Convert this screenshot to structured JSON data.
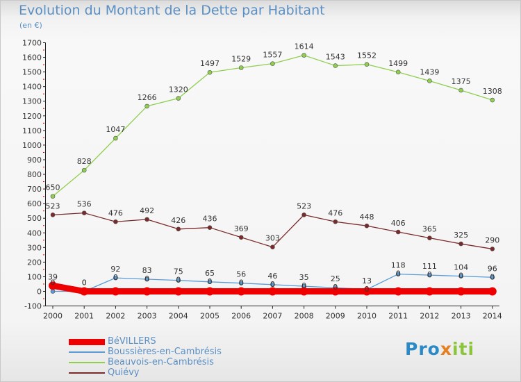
{
  "header": {
    "title": "Evolution du Montant de la Dette par Habitant",
    "subtitle": "(en €)"
  },
  "chart_data": {
    "type": "line",
    "title": "Evolution du Montant de la Dette par Habitant",
    "subtitle": "(en €)",
    "xlabel": "",
    "ylabel": "",
    "categories": [
      "2000",
      "2001",
      "2002",
      "2003",
      "2004",
      "2005",
      "2006",
      "2007",
      "2008",
      "2009",
      "2010",
      "2011",
      "2012",
      "2013",
      "2014"
    ],
    "ylim": [
      -100,
      1700
    ],
    "yticks": [
      -100,
      0,
      100,
      200,
      300,
      400,
      500,
      600,
      700,
      800,
      900,
      1000,
      1100,
      1200,
      1300,
      1400,
      1500,
      1600,
      1700
    ],
    "grid": false,
    "legend_position": "bottom-left",
    "series": [
      {
        "name": "BéVILLERS",
        "color": "#ee0000",
        "values": [
          39,
          0,
          0,
          0,
          0,
          0,
          0,
          0,
          0,
          0,
          0,
          0,
          0,
          0,
          0
        ],
        "labels": [
          "39",
          "0",
          "",
          "",
          "",
          "",
          "",
          "",
          "",
          "",
          "",
          "",
          "",
          "",
          ""
        ]
      },
      {
        "name": "Boussières-en-Cambrésis",
        "color": "#5b9bd5",
        "values": [
          0,
          0,
          92,
          83,
          75,
          65,
          56,
          46,
          35,
          25,
          13,
          118,
          111,
          104,
          96
        ],
        "labels": [
          "0",
          "0",
          "92",
          "83",
          "75",
          "65",
          "56",
          "46",
          "35",
          "25",
          "13",
          "118",
          "111",
          "104",
          "96"
        ]
      },
      {
        "name": "Beauvois-en-Cambrésis",
        "color": "#8fce4f",
        "values": [
          650,
          828,
          1047,
          1266,
          1320,
          1497,
          1529,
          1557,
          1614,
          1543,
          1552,
          1499,
          1439,
          1375,
          1308
        ],
        "labels": [
          "650",
          "828",
          "1047",
          "1266",
          "1320",
          "1497",
          "1529",
          "1557",
          "1614",
          "1543",
          "1552",
          "1499",
          "1439",
          "1375",
          "1308"
        ]
      },
      {
        "name": "Quiévy",
        "color": "#7a2a2a",
        "values": [
          523,
          536,
          476,
          492,
          426,
          436,
          369,
          303,
          523,
          476,
          448,
          406,
          365,
          325,
          290
        ],
        "labels": [
          "523",
          "536",
          "476",
          "492",
          "426",
          "436",
          "369",
          "303",
          "523",
          "476",
          "448",
          "406",
          "365",
          "325",
          "290"
        ]
      }
    ],
    "extra_labels": [
      "0",
      "0",
      "0",
      "0",
      "0",
      "0",
      "0",
      "0",
      "0",
      "0",
      "0",
      "0",
      "0"
    ]
  },
  "logo": {
    "part1": "Pro",
    "part2": "x",
    "part3": "iti"
  },
  "colors": {
    "title": "#5a8fc4",
    "axis": "#222222",
    "minor_tick": "#cc0000"
  }
}
